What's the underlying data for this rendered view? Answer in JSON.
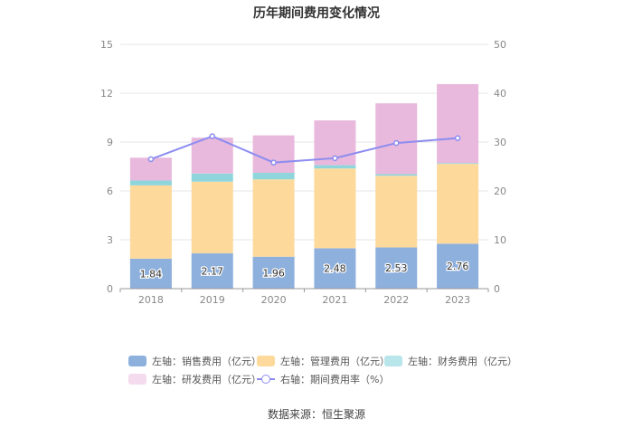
{
  "chart_data": {
    "type": "bar",
    "stacked": true,
    "title": "历年期间费用变化情况",
    "categories": [
      "2018",
      "2019",
      "2020",
      "2021",
      "2022",
      "2023"
    ],
    "left_axis": {
      "ticks": [
        "0",
        "3",
        "6",
        "9",
        "12",
        "15"
      ],
      "ylim": [
        0,
        15
      ]
    },
    "right_axis": {
      "ticks": [
        "0",
        "10",
        "20",
        "30",
        "40",
        "50"
      ],
      "ylim": [
        0,
        50
      ]
    },
    "series": [
      {
        "name": "左轴：销售费用（亿元）",
        "axis": "left",
        "color": "#8eb0dd",
        "values": [
          1.84,
          2.17,
          1.96,
          2.48,
          2.53,
          2.76
        ],
        "labels": [
          "1.84",
          "2.17",
          "1.96",
          "2.48",
          "2.53",
          "2.76"
        ]
      },
      {
        "name": "左轴：管理费用（亿元）",
        "axis": "left",
        "color": "#fdd99c",
        "values": [
          4.5,
          4.4,
          4.75,
          4.9,
          4.4,
          4.9
        ]
      },
      {
        "name": "左轴：财务费用（亿元）",
        "axis": "left",
        "color": "#8fd6dc",
        "values": [
          0.3,
          0.5,
          0.4,
          0.2,
          0.1,
          0.05
        ]
      },
      {
        "name": "左轴：研发费用（亿元）",
        "axis": "left",
        "color": "#e8b9dc",
        "values": [
          1.4,
          2.2,
          2.3,
          2.75,
          4.35,
          4.85
        ]
      },
      {
        "name": "右轴：期间费用率（%）",
        "axis": "right",
        "type": "line",
        "color": "#8c8cf0",
        "values": [
          26.5,
          31.2,
          25.8,
          26.7,
          29.8,
          30.8
        ]
      }
    ]
  },
  "source": "数据来源：恒生聚源"
}
